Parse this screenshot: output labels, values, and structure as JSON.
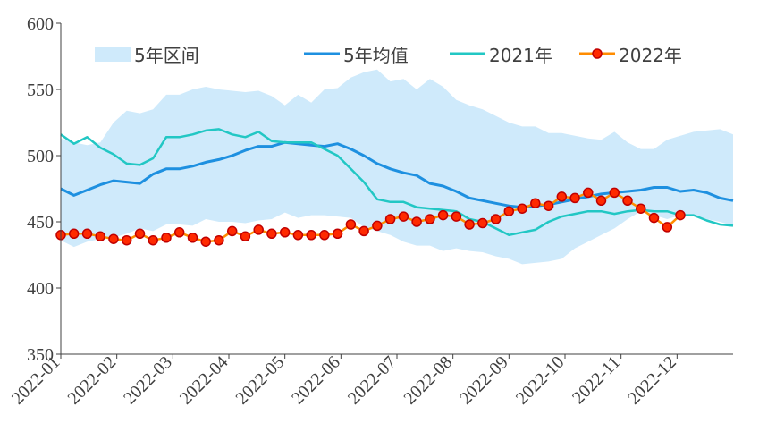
{
  "chart_data": {
    "type": "line",
    "ylim": [
      350,
      600
    ],
    "yticks": [
      "350",
      "400",
      "450",
      "500",
      "550",
      "600"
    ],
    "xticks": [
      "2022-01",
      "2022-02",
      "2022-03",
      "2022-04",
      "2022-05",
      "2022-06",
      "2022-07",
      "2022-08",
      "2022-09",
      "2022-10",
      "2022-11",
      "2022-12"
    ],
    "x_weeks": [
      0,
      1,
      2,
      3,
      4,
      5,
      6,
      7,
      8,
      9,
      10,
      11,
      12,
      13,
      14,
      15,
      16,
      17,
      18,
      19,
      20,
      21,
      22,
      23,
      24,
      25,
      26,
      27,
      28,
      29,
      30,
      31,
      32,
      33,
      34,
      35,
      36,
      37,
      38,
      39,
      40,
      41,
      42,
      43,
      44,
      45,
      46,
      47,
      48,
      49,
      50,
      51
    ],
    "legend": {
      "band": "5年区间",
      "mean": "5年均值",
      "y2021": "2021年",
      "y2022": "2022年"
    },
    "colors": {
      "band": "#cfeafb",
      "mean": "#1e90e0",
      "y2021": "#22c7c4",
      "y2022_line": "#ff8c00",
      "y2022_marker": "#ff2a00",
      "y2022_marker_edge": "#c00000",
      "axis": "#404040"
    },
    "series": [
      {
        "name": "5年区间",
        "upper": [
          513,
          510,
          508,
          510,
          525,
          534,
          532,
          535,
          546,
          546,
          550,
          552,
          550,
          549,
          548,
          549,
          545,
          538,
          546,
          540,
          550,
          551,
          559,
          563,
          565,
          556,
          558,
          550,
          558,
          552,
          542,
          538,
          535,
          530,
          525,
          522,
          522,
          517,
          517,
          515,
          513,
          512,
          518,
          510,
          505,
          505,
          512,
          515,
          518,
          519,
          520,
          516
        ],
        "lower": [
          436,
          431,
          435,
          437,
          438,
          441,
          445,
          443,
          448,
          448,
          447,
          452,
          450,
          450,
          449,
          451,
          452,
          457,
          453,
          455,
          455,
          454,
          453,
          446,
          443,
          440,
          435,
          432,
          432,
          428,
          430,
          428,
          427,
          424,
          422,
          418,
          419,
          420,
          422,
          430,
          435,
          440,
          445,
          452,
          458,
          455,
          452,
          455,
          455,
          452,
          450,
          447
        ]
      },
      {
        "name": "5年均值",
        "values": [
          475,
          470,
          474,
          478,
          481,
          480,
          479,
          486,
          490,
          490,
          492,
          495,
          497,
          500,
          504,
          507,
          507,
          510,
          509,
          508,
          507,
          509,
          505,
          500,
          494,
          490,
          487,
          485,
          479,
          477,
          473,
          468,
          466,
          464,
          462,
          461,
          462,
          463,
          465,
          467,
          469,
          471,
          472,
          473,
          474,
          476,
          476,
          473,
          474,
          472,
          468,
          466
        ]
      },
      {
        "name": "2021年",
        "values": [
          516,
          509,
          514,
          506,
          501,
          494,
          493,
          498,
          514,
          514,
          516,
          519,
          520,
          516,
          514,
          518,
          511,
          510,
          510,
          510,
          505,
          500,
          490,
          480,
          467,
          465,
          465,
          461,
          460,
          459,
          458,
          452,
          450,
          445,
          440,
          442,
          444,
          450,
          454,
          456,
          458,
          458,
          456,
          458,
          459,
          458,
          458,
          455,
          455,
          451,
          448,
          447
        ]
      },
      {
        "name": "2022年",
        "values": [
          440,
          441,
          441,
          439,
          437,
          436,
          441,
          436,
          438,
          442,
          438,
          435,
          436,
          443,
          439,
          444,
          441,
          442,
          440,
          440,
          440,
          441,
          448,
          443,
          447,
          452,
          454,
          450,
          452,
          455,
          454,
          448,
          449,
          452,
          458,
          460,
          464,
          462,
          469,
          468,
          472,
          466,
          472,
          466,
          460,
          453,
          446,
          455
        ]
      }
    ]
  }
}
